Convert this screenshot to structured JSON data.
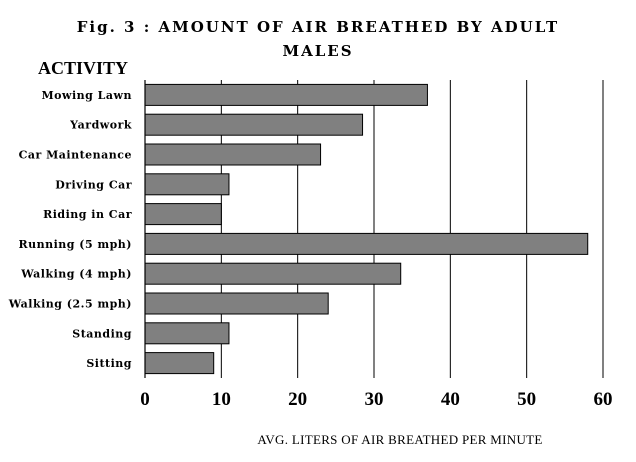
{
  "chart_data": {
    "type": "bar",
    "orientation": "horizontal",
    "title_line1": "Fig. 3 : AMOUNT OF AIR BREATHED BY ADULT",
    "title_line2": "MALES",
    "ylabel": "ACTIVITY",
    "xlabel": "AVG. LITERS OF AIR BREATHED PER MINUTE",
    "categories": [
      "Mowing Lawn",
      "Yardwork",
      "Car Maintenance",
      "Driving Car",
      "Riding in Car",
      "Running (5 mph)",
      "Walking (4 mph)",
      "Walking (2.5 mph)",
      "Standing",
      "Sitting"
    ],
    "values": [
      37,
      28.5,
      23,
      11,
      10,
      58,
      33.5,
      24,
      11,
      9
    ],
    "xlim": [
      0,
      60
    ],
    "xticks": [
      "0",
      "10",
      "20",
      "30",
      "40",
      "50",
      "60"
    ],
    "grid": "vertical",
    "bar_color": "#808080"
  }
}
